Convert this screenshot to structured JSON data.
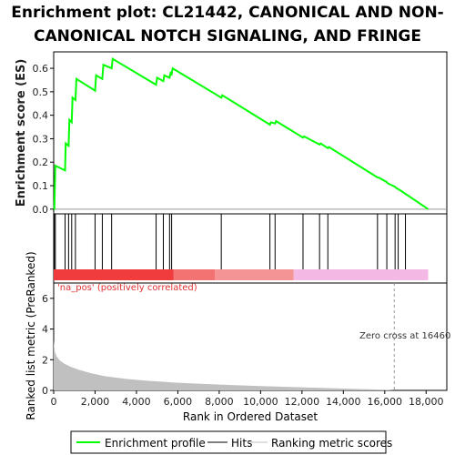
{
  "title_line1": "Enrichment plot: CL21442, CANONICAL AND NON-",
  "title_line2": "CANONICAL NOTCH SIGNALING, AND FRINGE",
  "chart_data": {
    "type": "line",
    "es_panel": {
      "ylabel": "Enrichment score (ES)",
      "ylim": [
        -0.02,
        0.67
      ],
      "yticks": [
        "0.0",
        "0.1",
        "0.2",
        "0.3",
        "0.4",
        "0.5",
        "0.6"
      ],
      "line_color": "#00ff00",
      "series": [
        {
          "name": "Enrichment profile",
          "x": [
            0,
            30,
            80,
            550,
            580,
            720,
            760,
            870,
            910,
            1050,
            1100,
            2000,
            2050,
            2350,
            2400,
            2800,
            2850,
            4950,
            5000,
            5300,
            5350,
            5600,
            5650,
            5700,
            5750,
            8100,
            8150,
            10450,
            10500,
            10700,
            10750,
            12050,
            12100,
            12850,
            12900,
            13250,
            13300,
            15650,
            15700,
            16100,
            16150,
            16500,
            16550,
            16650,
            16700,
            18100
          ],
          "y": [
            0.0,
            0.0,
            0.185,
            0.165,
            0.28,
            0.27,
            0.38,
            0.37,
            0.475,
            0.465,
            0.555,
            0.505,
            0.57,
            0.555,
            0.615,
            0.6,
            0.64,
            0.53,
            0.56,
            0.545,
            0.57,
            0.56,
            0.58,
            0.575,
            0.6,
            0.475,
            0.485,
            0.36,
            0.37,
            0.365,
            0.375,
            0.305,
            0.31,
            0.275,
            0.28,
            0.26,
            0.265,
            0.135,
            0.135,
            0.115,
            0.11,
            0.095,
            0.09,
            0.085,
            0.083,
            0.0
          ]
        }
      ]
    },
    "hits_panel": {
      "hits": [
        30,
        80,
        550,
        720,
        870,
        1050,
        2000,
        2350,
        2800,
        4950,
        5300,
        5600,
        5700,
        8100,
        10450,
        10700,
        12050,
        12850,
        13250,
        15650,
        16100,
        16500,
        16650,
        17000
      ],
      "band_segments": [
        {
          "from": 0,
          "to": 5800,
          "color": "#f03c3c"
        },
        {
          "from": 5800,
          "to": 7800,
          "color": "#f37272"
        },
        {
          "from": 7800,
          "to": 11600,
          "color": "#f59494"
        },
        {
          "from": 11600,
          "to": 18100,
          "color": "#f4b8e4"
        }
      ]
    },
    "metric_panel": {
      "ylabel": "Ranked list metric (PreRanked)",
      "ylim": [
        0,
        7
      ],
      "yticks": [
        "0",
        "2",
        "4",
        "6"
      ],
      "fill_color": "#c0c0c0",
      "x": [
        0,
        20,
        60,
        150,
        300,
        500,
        800,
        1200,
        1800,
        2500,
        3500,
        4500,
        6000,
        8000,
        10000,
        12000,
        14000,
        16000,
        16460,
        18100
      ],
      "y": [
        3.3,
        2.9,
        2.5,
        2.2,
        1.95,
        1.75,
        1.55,
        1.35,
        1.12,
        0.92,
        0.75,
        0.63,
        0.5,
        0.38,
        0.28,
        0.2,
        0.12,
        0.05,
        0.0,
        0.0
      ]
    },
    "x_axis": {
      "label": "Rank in Ordered Dataset",
      "xlim": [
        0,
        19000
      ],
      "ticks": [
        0,
        2000,
        4000,
        6000,
        8000,
        10000,
        12000,
        14000,
        16000,
        18000
      ],
      "tick_labels": [
        "0",
        "2,000",
        "4,000",
        "6,000",
        "8,000",
        "10,000",
        "12,000",
        "14,000",
        "16,000",
        "18,000"
      ]
    },
    "annotations": {
      "zero_cross_label": "Zero cross at 16460",
      "zero_cross_x": 16460,
      "pos_label": "'na_pos' (positively correlated)"
    },
    "legend": {
      "placement": "bottom",
      "items": [
        {
          "label": "Enrichment profile",
          "color": "#00ff00"
        },
        {
          "label": "Hits",
          "color": "#000000"
        },
        {
          "label": "Ranking metric scores",
          "color": "#c0c0c0"
        }
      ]
    }
  }
}
